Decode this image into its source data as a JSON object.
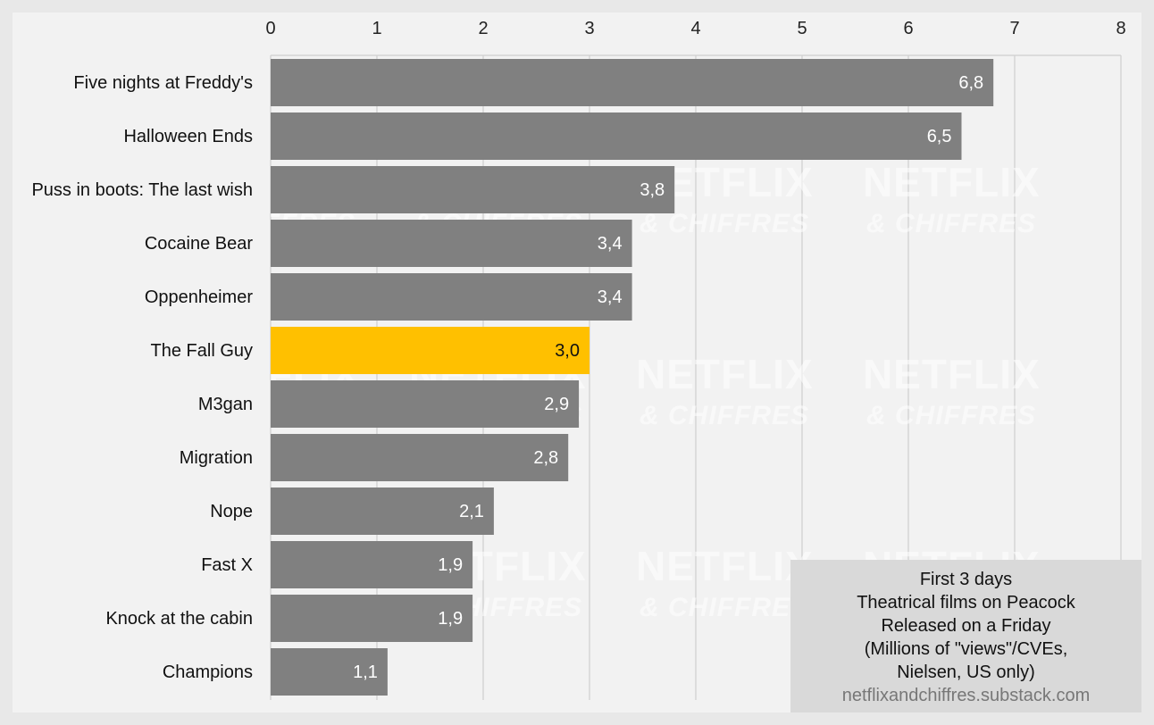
{
  "chart_data": {
    "type": "bar",
    "orientation": "horizontal",
    "categories": [
      "Five nights at Freddy's",
      "Halloween Ends",
      "Puss in boots: The last wish",
      "Cocaine Bear",
      "Oppenheimer",
      "The Fall Guy",
      "M3gan",
      "Migration",
      "Nope",
      "Fast X",
      "Knock at the cabin",
      "Champions"
    ],
    "values": [
      6.8,
      6.5,
      3.8,
      3.4,
      3.4,
      3.0,
      2.9,
      2.8,
      2.1,
      1.9,
      1.9,
      1.1
    ],
    "value_labels": [
      "6,8",
      "6,5",
      "3,8",
      "3,4",
      "3,4",
      "3,0",
      "2,9",
      "2,8",
      "2,1",
      "1,9",
      "1,9",
      "1,1"
    ],
    "highlight_index": 5,
    "xlim": [
      0,
      8
    ],
    "x_ticks": [
      0,
      1,
      2,
      3,
      4,
      5,
      6,
      7,
      8
    ],
    "x_tick_labels": [
      "0",
      "1",
      "2",
      "3",
      "4",
      "5",
      "6",
      "7",
      "8"
    ],
    "x_axis_position": "top",
    "grid": true,
    "colors": {
      "bar": "#808080",
      "highlight": "#ffc000",
      "value_label": "#ffffff",
      "highlight_value_label": "#111111",
      "grid": "#cfcfcf"
    },
    "title": "",
    "xlabel": "",
    "ylabel": ""
  },
  "info_box": {
    "lines": [
      "First 3 days",
      "Theatrical films on Peacock",
      "Released on a Friday",
      "(Millions of \"views\"/CVEs,",
      "Nielsen, US only)"
    ],
    "source": "netflixandchiffres.substack.com"
  },
  "watermark": {
    "line1": "NETFLIX",
    "line2": "& CHIFFRES"
  }
}
